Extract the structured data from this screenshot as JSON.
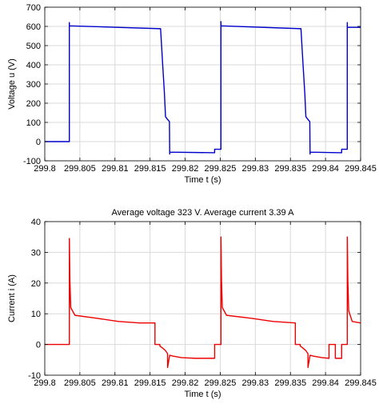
{
  "chart_data": [
    {
      "type": "line",
      "title": "",
      "xlabel": "Time t (s)",
      "ylabel": "Voltage  u  (V)",
      "xlim": [
        299.8,
        299.845
      ],
      "ylim": [
        -100,
        700
      ],
      "xticks": [
        "299.8",
        "299.805",
        "299.81",
        "299.815",
        "299.82",
        "299.825",
        "299.83",
        "299.835",
        "299.84",
        "299.845"
      ],
      "yticks": [
        "-100",
        "0",
        "100",
        "200",
        "300",
        "400",
        "500",
        "600",
        "700"
      ],
      "grid": true,
      "series": [
        {
          "color": "#0000cc",
          "x": [
            299.8,
            299.8035,
            299.8035,
            299.80351,
            299.8165,
            299.8168,
            299.81705,
            299.8172,
            299.8175,
            299.81775,
            299.81776,
            299.8178,
            299.8178,
            299.8242,
            299.8242,
            299.8251,
            299.8251,
            299.82511,
            299.8365,
            299.8368,
            299.83705,
            299.8372,
            299.8375,
            299.83775,
            299.83776,
            299.8378,
            299.8378,
            299.8423,
            299.8423,
            299.8431,
            299.8431,
            299.84311,
            299.845
          ],
          "y": [
            0,
            0,
            620,
            603,
            588,
            400,
            250,
            130,
            115,
            105,
            105,
            -65,
            -55,
            -58,
            -40,
            -40,
            625,
            603,
            588,
            400,
            250,
            130,
            115,
            105,
            105,
            -65,
            -55,
            -58,
            -40,
            -40,
            620,
            595,
            595
          ]
        }
      ]
    },
    {
      "type": "line",
      "title": "Average voltage 323 V. Average current 3.39 A",
      "xlabel": "Time t (s)",
      "ylabel": "Current  i  (A)",
      "xlim": [
        299.8,
        299.845
      ],
      "ylim": [
        -10,
        40
      ],
      "xticks": [
        "299.8",
        "299.805",
        "299.81",
        "299.815",
        "299.82",
        "299.825",
        "299.83",
        "299.835",
        "299.84",
        "299.845"
      ],
      "yticks": [
        "-10",
        "0",
        "10",
        "20",
        "30",
        "40"
      ],
      "grid": true,
      "series": [
        {
          "color": "#ee0000",
          "x": [
            299.8,
            299.8035,
            299.8035,
            299.80358,
            299.8037,
            299.8043,
            299.8075,
            299.8105,
            299.8135,
            299.8157,
            299.8157,
            299.8164,
            299.8164,
            299.8167,
            299.8172,
            299.8175,
            299.8175,
            299.8178,
            299.8183,
            299.8195,
            299.8215,
            299.8237,
            299.8242,
            299.8242,
            299.8251,
            299.8251,
            299.82518,
            299.8253,
            299.8259,
            299.8295,
            299.8325,
            299.8357,
            299.8357,
            299.8364,
            299.8364,
            299.8367,
            299.8372,
            299.8375,
            299.8375,
            299.8378,
            299.8383,
            299.8395,
            299.8405,
            299.8405,
            299.8414,
            299.8414,
            299.8423,
            299.8423,
            299.8431,
            299.8431,
            299.84318,
            299.8433,
            299.8438,
            299.845
          ],
          "y": [
            0,
            0,
            34.5,
            21,
            12,
            9.5,
            8.5,
            7.5,
            7,
            7,
            0,
            0,
            -0.5,
            -1,
            -2,
            -3,
            -7.5,
            -3.5,
            -3.8,
            -4.3,
            -4.5,
            -4.5,
            -4.5,
            0,
            0,
            35,
            21,
            12,
            9.5,
            8.5,
            7.5,
            7,
            0,
            0,
            -0.5,
            -1,
            -2,
            -3,
            -7.5,
            -3.5,
            -3.8,
            -4.3,
            -4.5,
            0,
            0,
            -4.5,
            -4.5,
            0,
            0,
            35,
            21,
            11,
            7.5,
            7
          ]
        }
      ]
    }
  ]
}
